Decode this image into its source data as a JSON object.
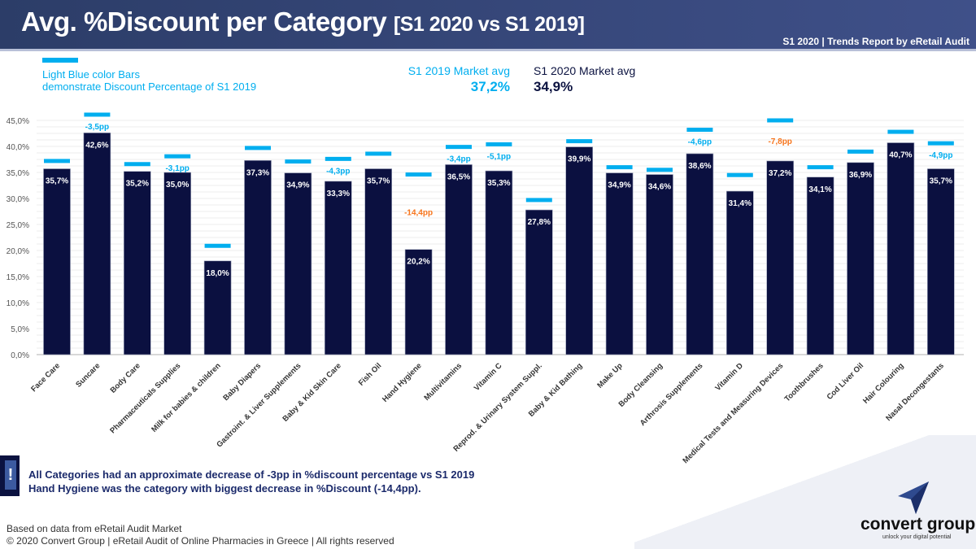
{
  "header": {
    "title": "Avg. %Discount per Category",
    "title_suffix": "[S1 2020 vs S1 2019]",
    "report": "S1 2020 | Trends Report by eRetail Audit"
  },
  "legend": {
    "line1": "Light Blue color Bars",
    "line2": "demonstrate Discount Percentage of S1 2019"
  },
  "market_avg": {
    "s1_2019_label": "S1 2019 Market avg",
    "s1_2019_value": "37,2%",
    "s1_2020_label": "S1 2020 Market avg",
    "s1_2020_value": "34,9%"
  },
  "colors": {
    "bar_2020": "#0b1040",
    "marker_2019": "#00aeef",
    "diff_normal": "#00aeef",
    "diff_highlight": "#f7751d"
  },
  "chart_data": {
    "type": "bar",
    "ylim": [
      0,
      45
    ],
    "yticks": [
      "0,0%",
      "5,0%",
      "10,0%",
      "15,0%",
      "20,0%",
      "25,0%",
      "30,0%",
      "35,0%",
      "40,0%",
      "45,0%"
    ],
    "grid": true,
    "categories": [
      "Face Care",
      "Suncare",
      "Body Care",
      "Pharmaceuticals Supplies",
      "Milk for babies & children",
      "Baby Diapers",
      "Gastroint. & Liver Supplements",
      "Baby & Kid Skin Care",
      "Fish Oil",
      "Hand Hygiene",
      "Multivitamins",
      "Vitamin C",
      "Reprod. & Urinary System Suppl.",
      "Baby & Kid Bathing",
      "Make Up",
      "Body Cleansing",
      "Arthrosis Supplements",
      "Vitamin D",
      "Medical Tests and Measuring Devices",
      "Toothbrushes",
      "Cod Liver Oil",
      "Hair Colouring",
      "Nasal Decongestants"
    ],
    "series": [
      {
        "name": "S1 2020",
        "type": "bar",
        "values": [
          35.7,
          42.6,
          35.2,
          35.0,
          18.0,
          37.3,
          34.9,
          33.3,
          35.7,
          20.2,
          36.5,
          35.3,
          27.8,
          39.9,
          34.9,
          34.6,
          38.6,
          31.4,
          37.2,
          34.1,
          36.9,
          40.7,
          35.7
        ],
        "labels": [
          "35,7%",
          "42,6%",
          "35,2%",
          "35,0%",
          "18,0%",
          "37,3%",
          "34,9%",
          "33,3%",
          "35,7%",
          "20,2%",
          "36,5%",
          "35,3%",
          "27,8%",
          "39,9%",
          "34,9%",
          "34,6%",
          "38,6%",
          "31,4%",
          "37,2%",
          "34,1%",
          "36,9%",
          "40,7%",
          "35,7%"
        ]
      },
      {
        "name": "S1 2019",
        "type": "marker",
        "values": [
          37.2,
          46.1,
          36.6,
          38.1,
          20.9,
          39.7,
          37.1,
          37.6,
          38.6,
          34.6,
          39.9,
          40.4,
          29.7,
          41.0,
          36.0,
          35.5,
          43.2,
          34.5,
          45.0,
          36.0,
          39.0,
          42.8,
          40.6
        ]
      }
    ],
    "diff_labels": [
      "",
      "-3,5pp",
      "",
      "-3,1pp",
      "",
      "",
      "",
      "-4,3pp",
      "",
      "-14,4pp",
      "-3,4pp",
      "-5,1pp",
      "",
      "",
      "",
      "",
      "-4,6pp",
      "",
      "-7,8pp",
      "",
      "",
      "",
      "-4,9pp"
    ],
    "diff_highlight": [
      false,
      false,
      false,
      false,
      false,
      false,
      false,
      false,
      false,
      true,
      false,
      false,
      false,
      false,
      false,
      false,
      false,
      false,
      true,
      false,
      false,
      false,
      false
    ]
  },
  "note": {
    "icon": "exclamation-icon",
    "line1": "All Categories had an approximate decrease of -3pp in %discount percentage vs S1 2019",
    "line2": "Hand Hygiene was the category with biggest decrease in %Discount (-14,4pp)."
  },
  "footer": {
    "source": "Based on data from eRetail Audit Market",
    "copyright": "© 2020 Convert Group | eRetail Audit of Online Pharmacies in Greece | All rights reserved"
  },
  "logo": {
    "name": "convert group",
    "tagline": "unlock your digital potential"
  }
}
